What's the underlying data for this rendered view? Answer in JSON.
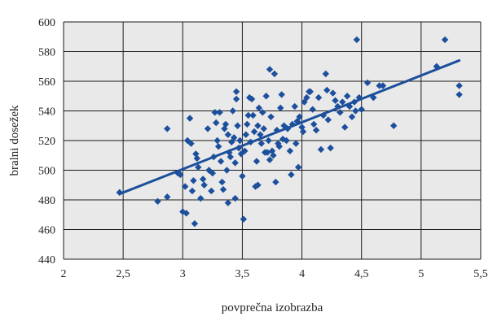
{
  "chart_data": {
    "type": "scatter",
    "title": "",
    "xlabel": "povprečna izobrazba",
    "ylabel": "bralni dosežek",
    "xlim": [
      2,
      5.5
    ],
    "ylim": [
      440,
      600
    ],
    "x_ticks": [
      2,
      2.5,
      3,
      3.5,
      4,
      4.5,
      5,
      5.5
    ],
    "y_ticks": [
      440,
      460,
      480,
      500,
      520,
      540,
      560,
      580,
      600
    ],
    "x_tick_labels": [
      "2",
      "2,5",
      "3",
      "3,5",
      "4",
      "4,5",
      "5",
      "5,5"
    ],
    "y_tick_labels": [
      "440",
      "460",
      "480",
      "500",
      "520",
      "540",
      "560",
      "580",
      "600"
    ],
    "grid": true,
    "plot_background": "#e9e9e9",
    "point_color": "#1c4f9c",
    "line_color": "#1c4f9c",
    "points": [
      [
        2.47,
        485
      ],
      [
        2.79,
        479
      ],
      [
        2.87,
        528
      ],
      [
        2.87,
        482
      ],
      [
        2.96,
        498
      ],
      [
        2.98,
        497
      ],
      [
        3.0,
        472
      ],
      [
        3.02,
        489
      ],
      [
        3.03,
        471
      ],
      [
        3.04,
        520
      ],
      [
        3.06,
        535
      ],
      [
        3.07,
        518
      ],
      [
        3.08,
        486
      ],
      [
        3.09,
        493
      ],
      [
        3.1,
        464
      ],
      [
        3.11,
        511
      ],
      [
        3.12,
        508
      ],
      [
        3.13,
        502
      ],
      [
        3.15,
        481
      ],
      [
        3.17,
        494
      ],
      [
        3.18,
        490
      ],
      [
        3.21,
        528
      ],
      [
        3.22,
        500
      ],
      [
        3.24,
        486
      ],
      [
        3.25,
        498
      ],
      [
        3.26,
        509
      ],
      [
        3.27,
        539
      ],
      [
        3.28,
        532
      ],
      [
        3.29,
        520
      ],
      [
        3.3,
        516
      ],
      [
        3.31,
        539
      ],
      [
        3.32,
        506
      ],
      [
        3.33,
        492
      ],
      [
        3.34,
        487
      ],
      [
        3.35,
        528
      ],
      [
        3.36,
        531
      ],
      [
        3.37,
        500
      ],
      [
        3.38,
        524
      ],
      [
        3.38,
        478
      ],
      [
        3.39,
        512
      ],
      [
        3.4,
        509
      ],
      [
        3.41,
        519
      ],
      [
        3.42,
        540
      ],
      [
        3.43,
        522
      ],
      [
        3.44,
        505
      ],
      [
        3.44,
        481
      ],
      [
        3.45,
        548
      ],
      [
        3.45,
        553
      ],
      [
        3.46,
        530
      ],
      [
        3.47,
        515
      ],
      [
        3.48,
        520
      ],
      [
        3.49,
        511
      ],
      [
        3.5,
        496
      ],
      [
        3.51,
        467
      ],
      [
        3.52,
        513
      ],
      [
        3.53,
        524
      ],
      [
        3.54,
        531
      ],
      [
        3.55,
        537
      ],
      [
        3.56,
        549
      ],
      [
        3.57,
        519
      ],
      [
        3.58,
        548
      ],
      [
        3.59,
        537
      ],
      [
        3.6,
        526
      ],
      [
        3.61,
        489
      ],
      [
        3.62,
        506
      ],
      [
        3.63,
        490
      ],
      [
        3.63,
        530
      ],
      [
        3.64,
        542
      ],
      [
        3.65,
        524
      ],
      [
        3.66,
        518
      ],
      [
        3.67,
        539
      ],
      [
        3.68,
        528
      ],
      [
        3.69,
        512
      ],
      [
        3.7,
        550
      ],
      [
        3.71,
        512
      ],
      [
        3.72,
        520
      ],
      [
        3.73,
        507
      ],
      [
        3.73,
        568
      ],
      [
        3.74,
        536
      ],
      [
        3.75,
        513
      ],
      [
        3.76,
        510
      ],
      [
        3.77,
        565
      ],
      [
        3.78,
        492
      ],
      [
        3.79,
        527
      ],
      [
        3.8,
        518
      ],
      [
        3.81,
        516
      ],
      [
        3.82,
        542
      ],
      [
        3.83,
        551
      ],
      [
        3.84,
        521
      ],
      [
        3.85,
        530
      ],
      [
        3.87,
        520
      ],
      [
        3.88,
        528
      ],
      [
        3.9,
        513
      ],
      [
        3.91,
        497
      ],
      [
        3.92,
        531
      ],
      [
        3.94,
        543
      ],
      [
        3.95,
        518
      ],
      [
        3.96,
        533
      ],
      [
        3.97,
        502
      ],
      [
        3.98,
        536
      ],
      [
        4.0,
        529
      ],
      [
        4.01,
        526
      ],
      [
        4.02,
        546
      ],
      [
        4.04,
        549
      ],
      [
        4.06,
        553
      ],
      [
        4.07,
        553
      ],
      [
        4.09,
        541
      ],
      [
        4.1,
        531
      ],
      [
        4.12,
        527
      ],
      [
        4.14,
        549
      ],
      [
        4.16,
        514
      ],
      [
        4.18,
        537
      ],
      [
        4.2,
        565
      ],
      [
        4.21,
        554
      ],
      [
        4.22,
        534
      ],
      [
        4.24,
        515
      ],
      [
        4.26,
        552
      ],
      [
        4.28,
        547
      ],
      [
        4.3,
        543
      ],
      [
        4.32,
        539
      ],
      [
        4.34,
        546
      ],
      [
        4.36,
        529
      ],
      [
        4.38,
        550
      ],
      [
        4.4,
        543
      ],
      [
        4.42,
        536
      ],
      [
        4.44,
        546
      ],
      [
        4.45,
        540
      ],
      [
        4.46,
        588
      ],
      [
        4.48,
        549
      ],
      [
        4.5,
        541
      ],
      [
        4.55,
        559
      ],
      [
        4.6,
        549
      ],
      [
        4.65,
        557
      ],
      [
        4.68,
        557
      ],
      [
        4.77,
        530
      ],
      [
        5.13,
        570
      ],
      [
        5.2,
        588
      ],
      [
        5.32,
        557
      ],
      [
        5.32,
        551
      ]
    ],
    "trendline": {
      "x": [
        2.47,
        5.32
      ],
      "y": [
        484,
        574
      ]
    }
  }
}
